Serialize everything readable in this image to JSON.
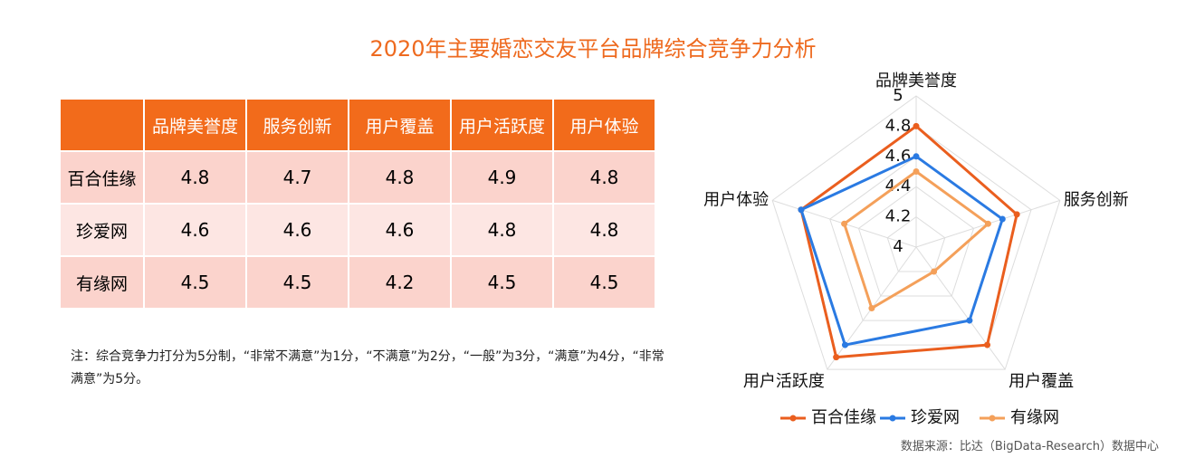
{
  "title": "2020年主要婚恋交友平台品牌综合竞争力分析",
  "note": "注：综合竞争力打分为5分制，“非常不满意”为1分，“不满意”为2分，“一般”为3分，“满意”为4分，“非常满意”为5分。",
  "source": "数据来源：比达（BigData-Research）数据中心",
  "chart_data": {
    "type": "radar",
    "categories": [
      "品牌美誉度",
      "服务创新",
      "用户覆盖",
      "用户活跃度",
      "用户体验"
    ],
    "series": [
      {
        "name": "百合佳缘",
        "color": "#ea5e1e",
        "values": [
          4.8,
          4.7,
          4.8,
          4.9,
          4.8
        ]
      },
      {
        "name": "珍爱网",
        "color": "#2a7ae2",
        "values": [
          4.6,
          4.6,
          4.6,
          4.8,
          4.8
        ]
      },
      {
        "name": "有缘网",
        "color": "#f4a05a",
        "values": [
          4.5,
          4.5,
          4.2,
          4.5,
          4.5
        ]
      }
    ],
    "rlim": [
      4,
      5
    ],
    "rticks": [
      4,
      4.2,
      4.4,
      4.6,
      4.8,
      5
    ],
    "grid": true,
    "legend": "bottom"
  }
}
